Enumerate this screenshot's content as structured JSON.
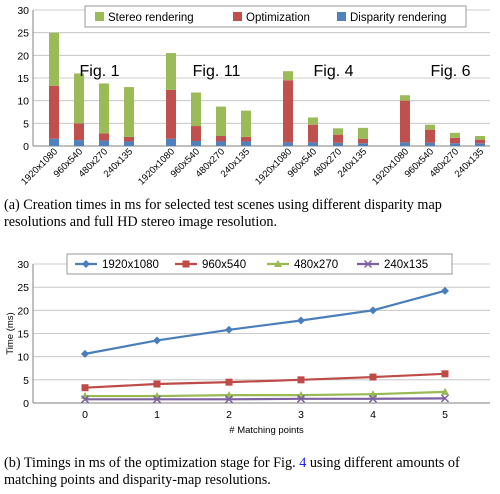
{
  "chart_data": [
    {
      "type": "bar",
      "stacked": true,
      "ylim": [
        0,
        30
      ],
      "yticks": [
        0,
        5,
        10,
        15,
        20,
        25,
        30
      ],
      "grid": true,
      "legend_position": "top",
      "groups": [
        {
          "label": "Fig. 1",
          "categories": [
            "1920x1080",
            "960x540",
            "480x270",
            "240x135"
          ]
        },
        {
          "label": "Fig. 11",
          "categories": [
            "1920x1080",
            "960x540",
            "480x270",
            "240x135"
          ]
        },
        {
          "label": "Fig. 4",
          "categories": [
            "1920x1080",
            "960x540",
            "480x270",
            "240x135"
          ]
        },
        {
          "label": "Fig. 6",
          "categories": [
            "1920x1080",
            "960x540",
            "480x270",
            "240x135"
          ]
        }
      ],
      "series": [
        {
          "name": "Disparity rendering",
          "color": "#4f81bd",
          "values": [
            1.6,
            1.3,
            1.2,
            1.0,
            1.6,
            1.1,
            1.0,
            1.0,
            0.8,
            0.8,
            0.7,
            0.6,
            0.8,
            0.7,
            0.6,
            0.6
          ]
        },
        {
          "name": "Optimization",
          "color": "#c0504d",
          "values": [
            11.7,
            3.7,
            1.6,
            1.0,
            10.8,
            3.3,
            1.2,
            1.0,
            13.7,
            3.9,
            1.8,
            1.0,
            9.2,
            2.9,
            1.2,
            0.8
          ]
        },
        {
          "name": "Stereo rendering",
          "color": "#9bbb59",
          "values": [
            11.7,
            11.0,
            11.0,
            11.0,
            8.1,
            7.4,
            6.5,
            5.8,
            2.0,
            1.6,
            1.4,
            2.4,
            1.2,
            1.1,
            1.1,
            0.8
          ]
        }
      ]
    },
    {
      "type": "line",
      "x": [
        0,
        1,
        2,
        3,
        4,
        5
      ],
      "xlabel": "# Matching points",
      "ylabel": "Time (ms)",
      "ylim": [
        0,
        30
      ],
      "yticks": [
        0,
        5,
        10,
        15,
        20,
        25,
        30
      ],
      "grid": true,
      "legend_position": "top",
      "series": [
        {
          "name": "1920x1080",
          "color": "#4a7ebb",
          "marker": "diamond",
          "values": [
            10.6,
            13.5,
            15.8,
            17.8,
            20.0,
            24.2
          ]
        },
        {
          "name": "960x540",
          "color": "#be4b48",
          "marker": "square",
          "values": [
            3.3,
            4.1,
            4.5,
            5.0,
            5.6,
            6.3
          ]
        },
        {
          "name": "480x270",
          "color": "#98b954",
          "marker": "triangle",
          "values": [
            1.5,
            1.5,
            1.7,
            1.7,
            1.9,
            2.4
          ]
        },
        {
          "name": "240x135",
          "color": "#7d60a0",
          "marker": "x",
          "values": [
            0.8,
            0.8,
            0.8,
            0.9,
            0.9,
            1.0
          ]
        }
      ]
    }
  ],
  "captions": {
    "a": "(a) Creation times in ms for selected test scenes using different disparity map resolutions and full HD stereo image resolution.",
    "b_prefix": "(b) Timings in ms of the optimization stage for Fig. ",
    "b_link": "4",
    "b_suffix": " using different amounts of matching points and disparity-map resolutions."
  }
}
